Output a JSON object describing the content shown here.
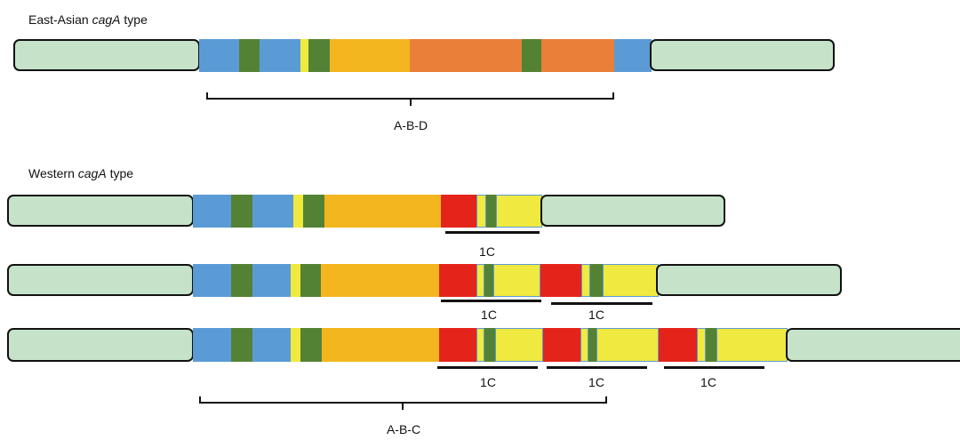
{
  "title_east_prefix": "East-Asian ",
  "title_east_gene": "cagA",
  "title_east_suffix": " type",
  "title_west_prefix": "Western ",
  "title_west_gene": "cagA",
  "title_west_suffix": " type",
  "label_abd": "A-B-D",
  "label_abc": "A-B-C",
  "repeat_label": "1C",
  "colors": {
    "terminal": "#c6e3c9",
    "blue": "#5b9bd5",
    "green": "#548235",
    "yellow": "#f0e93f",
    "orange_gold": "#f3b61f",
    "orange": "#e97f38",
    "red": "#e4241b",
    "outline": "#111111"
  }
}
